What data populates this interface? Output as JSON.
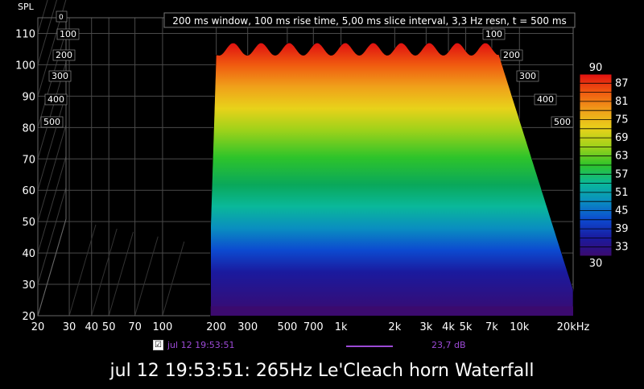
{
  "chart_data": {
    "type": "waterfall",
    "ylabel": "SPL",
    "info": "200 ms window, 100 ms rise time, 5,00 ms slice interval, 3,3 Hz resn, t = 500 ms",
    "x_ticks": [
      "20",
      "30",
      "40",
      "50",
      "70",
      "100",
      "200",
      "300",
      "500",
      "700",
      "1k",
      "2k",
      "3k",
      "4k",
      "5k",
      "7k",
      "10k",
      "20kHz"
    ],
    "x_tick_values": [
      20,
      30,
      40,
      50,
      70,
      100,
      200,
      300,
      500,
      700,
      1000,
      2000,
      3000,
      4000,
      5000,
      7000,
      10000,
      20000
    ],
    "xlim": [
      20,
      20000
    ],
    "ylim": [
      20,
      115
    ],
    "y_ticks": [
      20,
      30,
      40,
      50,
      60,
      70,
      80,
      90,
      100,
      110
    ],
    "time_ticks_left": [
      "0",
      "100",
      "200",
      "300",
      "400",
      "500"
    ],
    "time_ticks_right": [
      "100",
      "200",
      "300",
      "400",
      "500"
    ],
    "colorbar": {
      "min": 30,
      "max": 90,
      "ticks": [
        "87",
        "81",
        "75",
        "69",
        "63",
        "57",
        "51",
        "45",
        "39",
        "33"
      ],
      "max_label": "90",
      "min_label": "30",
      "colors": [
        "#3b0a6e",
        "#1a1a9e",
        "#0c4ad0",
        "#0a8ec0",
        "#0ab89a",
        "#0aa85a",
        "#2ec42a",
        "#9ed21a",
        "#e8d21a",
        "#f0a01a",
        "#f05a10",
        "#e01010"
      ]
    },
    "plateau_spl": 105,
    "passband_hz": [
      200,
      7500
    ],
    "floor_spl": 23
  },
  "legend": {
    "checked": "☑",
    "name": "jul 12 19:53:51",
    "value": "23,7 dB",
    "color": "#9c4ad6"
  },
  "title": "jul 12 19:53:51: 265Hz Le'Cleach horn Waterfall"
}
